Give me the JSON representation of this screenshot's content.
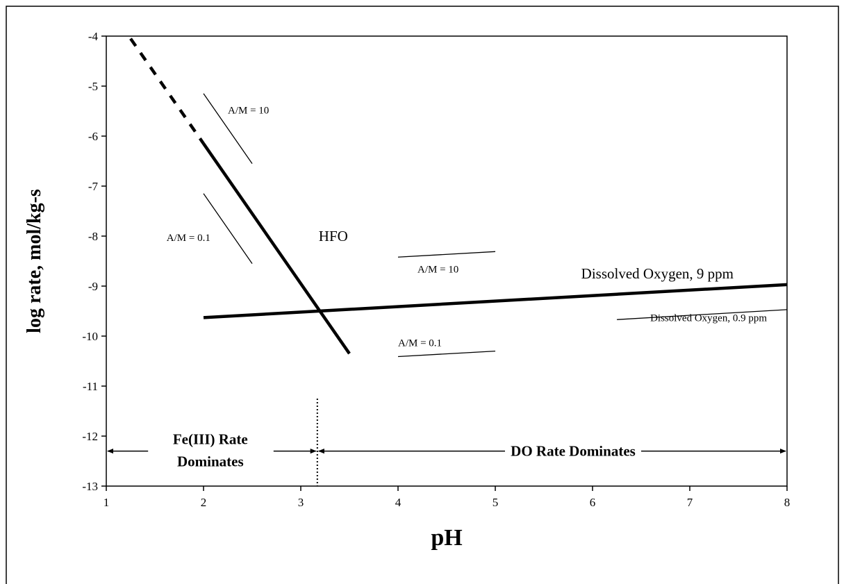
{
  "chart_data": {
    "type": "line",
    "xlabel": "pH",
    "ylabel": "log rate, mol/kg-s",
    "xlim": [
      1,
      8
    ],
    "ylim": [
      -13,
      -4
    ],
    "x_ticks": [
      1,
      2,
      3,
      4,
      5,
      6,
      7,
      8
    ],
    "y_ticks": [
      -4,
      -5,
      -6,
      -7,
      -8,
      -9,
      -10,
      -11,
      -12,
      -13
    ],
    "grid": false,
    "series": [
      {
        "name": "HFO",
        "style": "bold",
        "x": [
          2.0,
          3.5
        ],
        "y": [
          -6.15,
          -10.35
        ]
      },
      {
        "name": "",
        "style": "bold-dashed",
        "x": [
          1.25,
          2.0
        ],
        "y": [
          -4.05,
          -6.15
        ]
      },
      {
        "name": "Dissolved Oxygen, 9 ppm",
        "style": "bold",
        "x": [
          2.0,
          8.0
        ],
        "y": [
          -9.63,
          -8.97
        ]
      },
      {
        "name": "Dissolved Oxygen, 0.9 ppm",
        "style": "thin",
        "x": [
          6.25,
          8.0
        ],
        "y": [
          -9.67,
          -9.47
        ]
      }
    ],
    "reference_lines": [
      {
        "label": "A/M = 10",
        "x": [
          2.0,
          2.5
        ],
        "y": [
          -5.15,
          -6.55
        ]
      },
      {
        "label": "A/M = 0.1",
        "x": [
          2.0,
          2.5
        ],
        "y": [
          -7.15,
          -8.55
        ]
      },
      {
        "label": "A/M = 10",
        "x": [
          4.0,
          5.0
        ],
        "y": [
          -8.42,
          -8.31
        ]
      },
      {
        "label": "A/M = 0.1",
        "x": [
          4.0,
          5.0
        ],
        "y": [
          -10.41,
          -10.3
        ]
      }
    ],
    "divider": {
      "x": 3.17,
      "y": [
        -11.25,
        -13
      ]
    },
    "regions": [
      {
        "line1": "Fe(III) Rate",
        "line2": "Dominates",
        "x": [
          1.0,
          3.17
        ]
      },
      {
        "line1": "DO Rate Dominates",
        "line2": "",
        "x": [
          3.17,
          8.0
        ]
      }
    ],
    "region_arrow_y": -12.3,
    "colors": {
      "line": "#000000",
      "background": "#ffffff"
    }
  }
}
